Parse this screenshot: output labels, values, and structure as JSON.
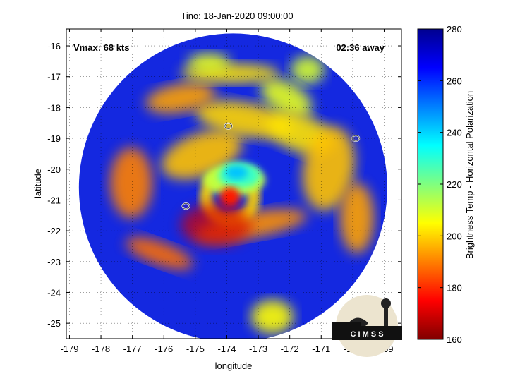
{
  "title": "Tino: 18-Jan-2020 09:00:00",
  "annotations": {
    "vmax": "Vmax: 68 kts",
    "time_away": "02:36 away"
  },
  "axes": {
    "xlabel": "longitude",
    "ylabel": "latitude",
    "xlim": [
      -179.1,
      -168.45
    ],
    "ylim": [
      -25.5,
      -15.45
    ],
    "xticks": [
      "-179",
      "-178",
      "-177",
      "-176",
      "-175",
      "-174",
      "-173",
      "-172",
      "-171",
      "-170",
      "-169"
    ],
    "xtick_values": [
      -179,
      -178,
      -177,
      -176,
      -175,
      -174,
      -173,
      -172,
      -171,
      -170,
      -169
    ],
    "yticks": [
      "-16",
      "-17",
      "-18",
      "-19",
      "-20",
      "-21",
      "-22",
      "-23",
      "-24",
      "-25"
    ],
    "ytick_values": [
      -16,
      -17,
      -18,
      -19,
      -20,
      -21,
      -22,
      -23,
      -24,
      -25
    ],
    "grid": "dotted"
  },
  "colorbar": {
    "label": "Brightness Temp - Horizontal Polarization",
    "ticks": [
      "280",
      "260",
      "240",
      "220",
      "200",
      "180",
      "160"
    ],
    "tick_values": [
      280,
      260,
      240,
      220,
      200,
      180,
      160
    ],
    "range": [
      160,
      280
    ],
    "colormap": "jet"
  },
  "swath": {
    "center_lon": -173.8,
    "center_lat": -20.6,
    "radius_deg": 4.9,
    "base_temp": 262
  },
  "storm": {
    "eye_lon": -173.9,
    "eye_lat": -20.9,
    "coldest_lon": -173.6,
    "coldest_lat": -20.2,
    "coldest_temp": 198
  },
  "contours": [
    {
      "lon": -173.95,
      "lat": -18.6
    },
    {
      "lon": -169.9,
      "lat": -19.0
    },
    {
      "lon": -175.3,
      "lat": -21.2
    }
  ],
  "logo": {
    "text": "C I M S S"
  },
  "colors": {
    "map_background": "#1428e0"
  }
}
